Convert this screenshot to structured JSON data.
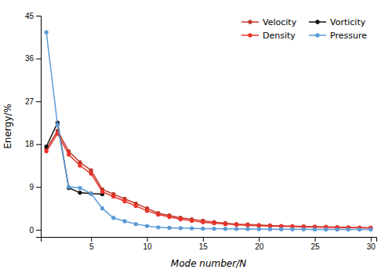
{
  "chart_data": {
    "type": "line",
    "x_label": "Mode number/N",
    "y_label": "Energy/%",
    "xlim": [
      0.5,
      30.5
    ],
    "ylim": [
      -1.5,
      45
    ],
    "xticks": [
      5,
      10,
      15,
      20,
      25,
      30
    ],
    "yticks": [
      0,
      9,
      18,
      27,
      36,
      45
    ],
    "grid": false,
    "legend": "top-right",
    "marker": "circle",
    "series": [
      {
        "name": "Velocity",
        "color": "#c0392b",
        "x": [
          1,
          2,
          3,
          4,
          5,
          6,
          7,
          8,
          9,
          10,
          11,
          12,
          13,
          14,
          15,
          16,
          17,
          18,
          19,
          20,
          21,
          22,
          23,
          24,
          25,
          26,
          27,
          28,
          29,
          30
        ],
        "values": [
          17.0,
          20.8,
          16.5,
          14.2,
          12.5,
          8.5,
          7.5,
          6.5,
          5.5,
          4.5,
          3.5,
          3.0,
          2.5,
          2.2,
          1.9,
          1.6,
          1.4,
          1.2,
          1.1,
          1.0,
          0.9,
          0.8,
          0.75,
          0.7,
          0.65,
          0.6,
          0.55,
          0.5,
          0.45,
          0.4
        ]
      },
      {
        "name": "Vorticity",
        "color": "#111111",
        "x": [
          1,
          2,
          3,
          4,
          5,
          6
        ],
        "values": [
          17.5,
          22.5,
          8.8,
          7.8,
          7.6,
          7.5
        ]
      },
      {
        "name": "Density",
        "color": "#e8342a",
        "x": [
          1,
          2,
          3,
          4,
          5,
          6,
          7,
          8,
          9,
          10,
          11,
          12,
          13,
          14,
          15,
          16,
          17,
          18,
          19,
          20,
          21,
          22,
          23,
          24,
          25,
          26,
          27,
          28,
          29,
          30
        ],
        "values": [
          16.5,
          20.2,
          15.8,
          13.5,
          11.8,
          8.0,
          7.0,
          6.0,
          5.0,
          4.0,
          3.2,
          2.7,
          2.2,
          1.9,
          1.6,
          1.4,
          1.2,
          1.05,
          0.95,
          0.85,
          0.78,
          0.72,
          0.67,
          0.62,
          0.57,
          0.53,
          0.49,
          0.45,
          0.42,
          0.39
        ]
      },
      {
        "name": "Pressure",
        "color": "#5b9bd5",
        "x": [
          1,
          2,
          3,
          4,
          5,
          6,
          7,
          8,
          9,
          10,
          11,
          12,
          13,
          14,
          15,
          16,
          17,
          18,
          19,
          20,
          21,
          22,
          23,
          24,
          25,
          26,
          27,
          28,
          29,
          30
        ],
        "values": [
          41.5,
          22.0,
          9.0,
          8.8,
          7.6,
          4.5,
          2.5,
          1.8,
          1.2,
          0.8,
          0.5,
          0.4,
          0.35,
          0.3,
          0.25,
          0.22,
          0.2,
          0.18,
          0.16,
          0.14,
          0.12,
          0.11,
          0.1,
          0.09,
          0.08,
          0.07,
          0.06,
          0.06,
          0.05,
          0.05
        ]
      }
    ]
  }
}
